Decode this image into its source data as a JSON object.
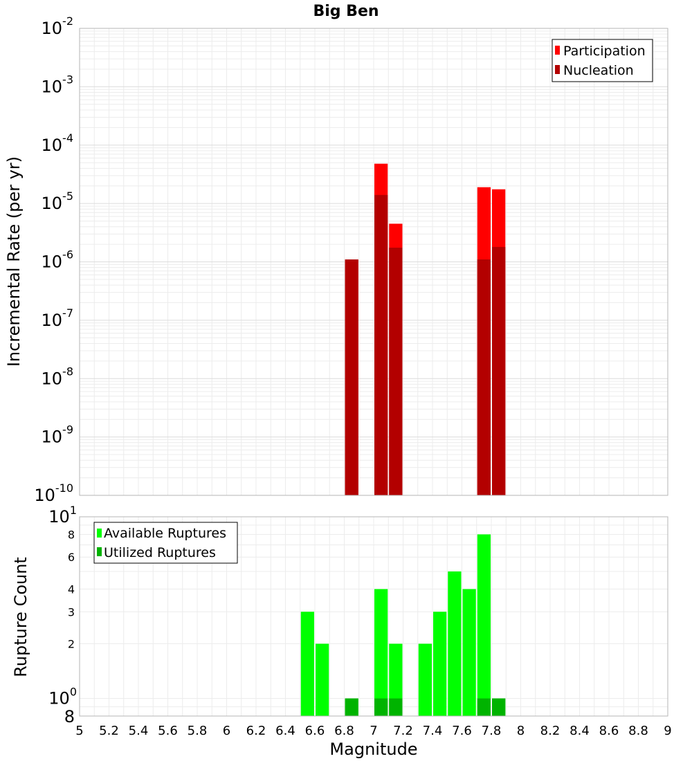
{
  "chart_data": [
    {
      "type": "bar",
      "title": "Big Ben",
      "xlabel": "",
      "ylabel": "Incremental Rate (per yr)",
      "yscale": "log",
      "ylim": [
        1e-10,
        0.01
      ],
      "xlim": [
        5,
        9
      ],
      "bar_width": 0.1,
      "grid": true,
      "legend_position": "top-right",
      "y_tick_labels": [
        {
          "value": 1e-10,
          "base": "10",
          "exp": "-10"
        },
        {
          "value": 1e-09,
          "base": "10",
          "exp": "-9"
        },
        {
          "value": 1e-08,
          "base": "10",
          "exp": "-8"
        },
        {
          "value": 1e-07,
          "base": "10",
          "exp": "-7"
        },
        {
          "value": 1e-06,
          "base": "10",
          "exp": "-6"
        },
        {
          "value": 1e-05,
          "base": "10",
          "exp": "-5"
        },
        {
          "value": 0.0001,
          "base": "10",
          "exp": "-4"
        },
        {
          "value": 0.001,
          "base": "10",
          "exp": "-3"
        },
        {
          "value": 0.01,
          "base": "10",
          "exp": "-2"
        }
      ],
      "series": [
        {
          "name": "Participation",
          "color": "#ff0000",
          "points": [
            {
              "x": 6.85,
              "y": 1.1e-06
            },
            {
              "x": 7.05,
              "y": 4.8e-05
            },
            {
              "x": 7.15,
              "y": 4.5e-06
            },
            {
              "x": 7.75,
              "y": 1.9e-05
            },
            {
              "x": 7.85,
              "y": 1.75e-05
            }
          ]
        },
        {
          "name": "Nucleation",
          "color": "#b30000",
          "points": [
            {
              "x": 6.85,
              "y": 1.1e-06
            },
            {
              "x": 7.05,
              "y": 1.4e-05
            },
            {
              "x": 7.15,
              "y": 1.75e-06
            },
            {
              "x": 7.75,
              "y": 1.1e-06
            },
            {
              "x": 7.85,
              "y": 1.8e-06
            }
          ]
        }
      ]
    },
    {
      "type": "bar",
      "title": "",
      "xlabel": "Magnitude",
      "ylabel": "Rupture Count",
      "yscale": "log",
      "ylim": [
        0.8,
        10
      ],
      "xlim": [
        5,
        9
      ],
      "bar_width": 0.1,
      "grid": true,
      "legend_position": "top-left",
      "x_tick_labels": [
        "5",
        "5.2",
        "5.4",
        "5.6",
        "5.8",
        "6",
        "6.2",
        "6.4",
        "6.6",
        "6.8",
        "7",
        "7.2",
        "7.4",
        "7.6",
        "7.8",
        "8",
        "8.2",
        "8.4",
        "8.6",
        "8.8",
        "9"
      ],
      "y_decade_labels": [
        {
          "value": 1,
          "base": "10",
          "exp": "0"
        },
        {
          "value": 10,
          "base": "10",
          "exp": "1"
        }
      ],
      "y_minor_labels": [
        {
          "value": 2,
          "text": "2"
        },
        {
          "value": 3,
          "text": "3"
        },
        {
          "value": 4,
          "text": "4"
        },
        {
          "value": 6,
          "text": "6"
        },
        {
          "value": 8,
          "text": "8"
        }
      ],
      "y_bottom_label": "8",
      "series": [
        {
          "name": "Available Ruptures",
          "color": "#00ff00",
          "points": [
            {
              "x": 6.55,
              "y": 3
            },
            {
              "x": 6.65,
              "y": 2
            },
            {
              "x": 6.85,
              "y": 1
            },
            {
              "x": 7.05,
              "y": 4
            },
            {
              "x": 7.15,
              "y": 2
            },
            {
              "x": 7.35,
              "y": 2
            },
            {
              "x": 7.45,
              "y": 3
            },
            {
              "x": 7.55,
              "y": 5
            },
            {
              "x": 7.65,
              "y": 4
            },
            {
              "x": 7.75,
              "y": 8
            },
            {
              "x": 7.85,
              "y": 1
            }
          ]
        },
        {
          "name": "Utilized Ruptures",
          "color": "#00b300",
          "points": [
            {
              "x": 6.85,
              "y": 1
            },
            {
              "x": 7.05,
              "y": 1
            },
            {
              "x": 7.15,
              "y": 1
            },
            {
              "x": 7.75,
              "y": 1
            },
            {
              "x": 7.85,
              "y": 1
            }
          ]
        }
      ]
    }
  ]
}
